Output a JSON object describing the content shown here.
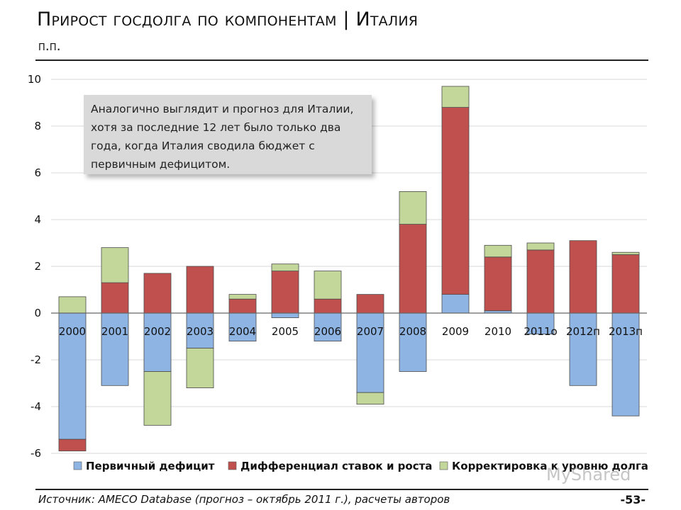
{
  "header": {
    "title": "Прирост госдолга по компонентам | Италия",
    "subtitle": "п.п."
  },
  "callout": {
    "text": "Аналогично выглядит и прогноз для Италии, хотя за последние 12 лет было только два года, когда Италия сводила бюджет с первичным дефицитом."
  },
  "footer": {
    "source": "Источник: AMECO Database (прогноз – октябрь 2011 г.), расчеты авторов",
    "page_number": "-53-"
  },
  "watermark": "MyShared",
  "colors": {
    "primary_deficit": "#8eb4e3",
    "differential": "#c0504d",
    "adjustment": "#c4d79b"
  },
  "chart_data": {
    "type": "bar",
    "stacked": true,
    "categories": [
      "2000",
      "2001",
      "2002",
      "2003",
      "2004",
      "2005",
      "2006",
      "2007",
      "2008",
      "2009",
      "2010",
      "2011о",
      "2012п",
      "2013п"
    ],
    "series": [
      {
        "name": "Первичный дефицит",
        "color": "#8eb4e3",
        "values": [
          -5.4,
          -3.1,
          -2.5,
          -1.5,
          -1.2,
          -0.2,
          -1.2,
          -3.4,
          -2.5,
          0.8,
          0.1,
          -0.9,
          -3.1,
          -4.4
        ]
      },
      {
        "name": "Дифференциал ставок и роста",
        "color": "#c0504d",
        "values": [
          -0.5,
          1.3,
          1.7,
          2.0,
          0.6,
          1.8,
          0.6,
          0.8,
          3.8,
          8.0,
          2.3,
          2.7,
          3.1,
          2.5
        ]
      },
      {
        "name": "Корректировка к уровню долга",
        "color": "#c4d79b",
        "values": [
          0.7,
          1.5,
          -2.3,
          -1.7,
          0.2,
          0.3,
          1.2,
          -0.5,
          1.4,
          0.9,
          0.5,
          0.3,
          0.0,
          0.1
        ]
      }
    ],
    "ylim": [
      -6,
      10
    ],
    "yticks": [
      "10",
      "8",
      "6",
      "4",
      "2",
      "0",
      "-2",
      "-4",
      "-6"
    ],
    "grid": true,
    "legend": "bottom"
  }
}
